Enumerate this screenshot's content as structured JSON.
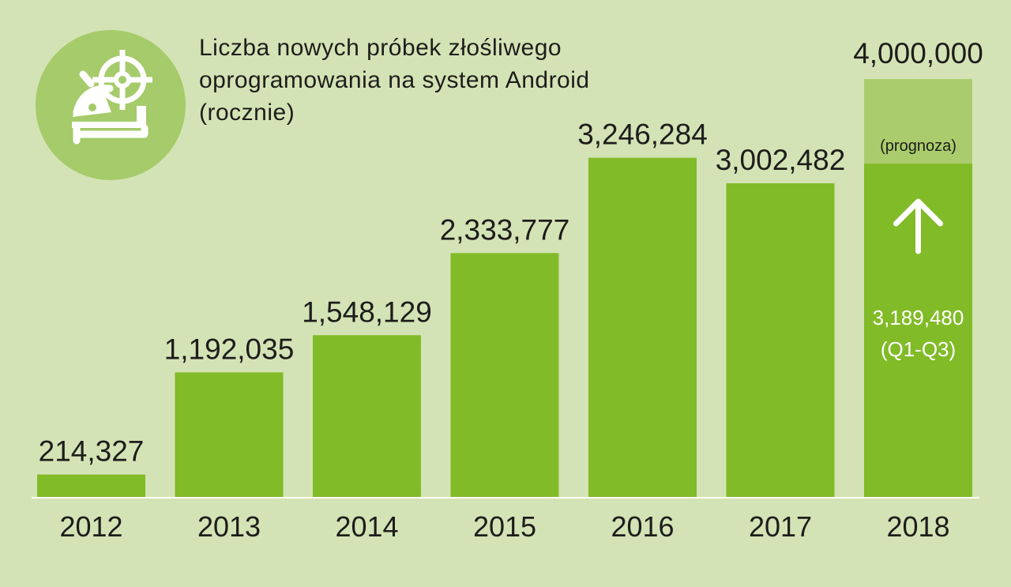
{
  "chart_data": {
    "type": "bar",
    "title": "Liczba nowych próbek złośliwego\noprogramowania na system Android\n(rocznie)",
    "categories": [
      "2012",
      "2013",
      "2014",
      "2015",
      "2016",
      "2017",
      "2018"
    ],
    "values": [
      214327,
      1192035,
      1548129,
      2333777,
      3246284,
      3002482,
      3189480
    ],
    "value_labels": [
      "214,327",
      "1,192,035",
      "1,548,129",
      "2,333,777",
      "3,246,284",
      "3,002,482",
      "3,189,480\n(Q1-Q3)"
    ],
    "forecast": {
      "category": "2018",
      "value": 4000000,
      "value_label": "4,000,000",
      "note": "(prognoza)"
    },
    "ylim": [
      0,
      4000000
    ],
    "grid": false,
    "colors": {
      "background": "#d4e3b5",
      "bar": "#81bb27",
      "forecast": "#aacc6c",
      "text": "#1d1d1b",
      "label_inside": "#ffffff",
      "baseline": "#ffffff",
      "logo_bg": "#a5cb6a"
    }
  },
  "logo": {
    "icon": "android-target-icon"
  }
}
